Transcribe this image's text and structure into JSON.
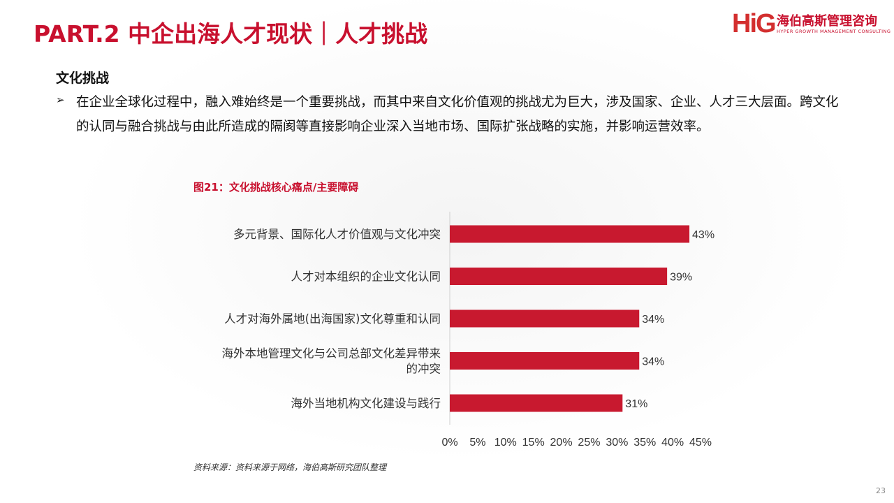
{
  "header": {
    "title": "PART.2 中企出海人才现状｜人才挑战",
    "logo": {
      "mark": "HiG",
      "name_cn": "海伯高斯管理咨询",
      "name_en": "HYPER GROWTH MANAGEMENT CONSULTING"
    }
  },
  "content": {
    "heading": "文化挑战",
    "bullet_icon": "arrow-bullet-icon",
    "bullet": "在企业全球化过程中，融入难始终是一个重要挑战，而其中来自文化价值观的挑战尤为巨大，涉及国家、企业、人才三大层面。跨文化的认同与融合挑战与由此所造成的隔阂等直接影响企业深入当地市场、国际扩张战略的实施，并影响运营效率。"
  },
  "chart_title": "图21：文化挑战核心痛点/主要障碍",
  "chart_data": {
    "type": "bar",
    "orientation": "horizontal",
    "categories": [
      [
        "多元背景、国际化人才价值观与文化冲突"
      ],
      [
        "人才对本组织的企业文化认同"
      ],
      [
        "人才对海外属地(出海国家)文化尊重和认同"
      ],
      [
        "海外本地管理文化与公司总部文化差异带来",
        "的冲突"
      ],
      [
        "海外当地机构文化建设与践行"
      ]
    ],
    "values": [
      43,
      39,
      34,
      34,
      31
    ],
    "value_labels": [
      "43%",
      "39%",
      "34%",
      "34%",
      "31%"
    ],
    "xticks": [
      "0%",
      "5%",
      "10%",
      "15%",
      "20%",
      "25%",
      "30%",
      "35%",
      "40%",
      "45%"
    ],
    "xlim": [
      0,
      45
    ],
    "color": "#c8192f",
    "grid": false
  },
  "source": "资料来源：资料来源于网络，海伯高斯研究团队整理",
  "page_number": "23"
}
